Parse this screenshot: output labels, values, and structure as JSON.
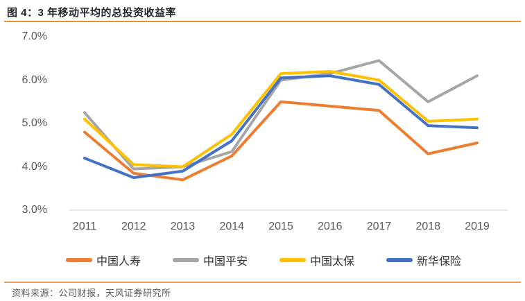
{
  "header": {
    "title": "图 4：3 年移动平均的总投资收益率",
    "rule_color": "#E8912D"
  },
  "chart_data": {
    "type": "line",
    "title": "图 4：3 年移动平均的总投资收益率",
    "categories": [
      "2011",
      "2012",
      "2013",
      "2014",
      "2015",
      "2016",
      "2017",
      "2018",
      "2019"
    ],
    "series": [
      {
        "name": "中国人寿",
        "color": "#ED7D31",
        "values": [
          4.8,
          3.85,
          3.7,
          4.25,
          5.5,
          5.4,
          5.3,
          4.3,
          4.55
        ]
      },
      {
        "name": "中国平安",
        "color": "#A6A6A6",
        "values": [
          5.25,
          3.95,
          4.0,
          4.35,
          6.0,
          6.15,
          6.45,
          5.5,
          6.1
        ]
      },
      {
        "name": "中国太保",
        "color": "#FFC000",
        "values": [
          5.1,
          4.05,
          4.0,
          4.75,
          6.15,
          6.2,
          6.0,
          5.05,
          5.1
        ]
      },
      {
        "name": "新华保险",
        "color": "#4472C4",
        "values": [
          4.2,
          3.75,
          3.9,
          4.6,
          6.05,
          6.1,
          5.9,
          4.95,
          4.9
        ]
      }
    ],
    "yticks": [
      "7.0%",
      "6.0%",
      "5.0%",
      "4.0%",
      "3.0%"
    ],
    "ytick_values": [
      7.0,
      6.0,
      5.0,
      4.0,
      3.0
    ],
    "ylim": [
      3.0,
      7.0
    ],
    "grid": false,
    "legend_position": "bottom",
    "axis_color": "#D9D9D9",
    "tick_label_color": "#595959"
  },
  "footer": {
    "source": "资料来源：公司财报，天风证券研究所",
    "rule_color": "#E2A15F"
  }
}
